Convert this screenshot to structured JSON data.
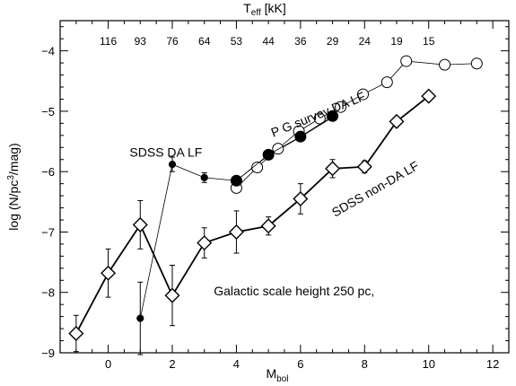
{
  "chart_data": {
    "type": "line",
    "xlabel": "M",
    "xlabel_sub": "bol",
    "ylabel": "log (N/pc",
    "ylabel_sup": "3",
    "ylabel_tail": "/mag)",
    "top_axis_label": "T",
    "top_axis_sub": "eff",
    "top_axis_unit": " [kK]",
    "xlim": [
      -1.5,
      12.5
    ],
    "ylim": [
      -9,
      -3.5
    ],
    "x_ticks": [
      "0",
      "2",
      "4",
      "6",
      "8",
      "10",
      "12"
    ],
    "x_tick_values": [
      0,
      2,
      4,
      6,
      8,
      10,
      12
    ],
    "y_ticks": [
      "−4",
      "−5",
      "−6",
      "−7",
      "−8",
      "−9"
    ],
    "y_tick_values": [
      -4,
      -5,
      -6,
      -7,
      -8,
      -9
    ],
    "top_ticks": [
      {
        "label": "116",
        "x": 0
      },
      {
        "label": "93",
        "x": 1
      },
      {
        "label": "76",
        "x": 2
      },
      {
        "label": "64",
        "x": 3
      },
      {
        "label": "53",
        "x": 4
      },
      {
        "label": "44",
        "x": 5
      },
      {
        "label": "36",
        "x": 6
      },
      {
        "label": "29",
        "x": 7
      },
      {
        "label": "24",
        "x": 8
      },
      {
        "label": "19",
        "x": 9
      },
      {
        "label": "15",
        "x": 10
      }
    ],
    "series": [
      {
        "name": "SDSS DA LF",
        "marker": "small-filled-circle",
        "line_width": 0.8,
        "x": [
          1,
          2,
          3,
          4,
          5,
          6,
          7
        ],
        "y": [
          -8.43,
          -5.88,
          -6.1,
          -6.15,
          -5.73,
          -5.43,
          -5.1
        ],
        "yerr": [
          0.6,
          0.12,
          0.08,
          0.06,
          0.05,
          0.05,
          0.05
        ]
      },
      {
        "name": "P G survey DA LF",
        "marker": "open-circle",
        "line_width": 0.8,
        "x": [
          4,
          4.65,
          5.3,
          5.95,
          6.6,
          7.25,
          7.95,
          8.7,
          9.3,
          10.5,
          11.5
        ],
        "y": [
          -6.27,
          -5.93,
          -5.62,
          -5.33,
          -5.12,
          -4.93,
          -4.72,
          -4.52,
          -4.17,
          -4.23,
          -4.21
        ],
        "yerr": []
      },
      {
        "name": "SDSS DA LF (large)",
        "marker": "large-filled-circle",
        "line_width": 0.8,
        "x": [
          4,
          5,
          6,
          7
        ],
        "y": [
          -6.15,
          -5.72,
          -5.42,
          -5.08
        ],
        "yerr": [
          0.06,
          0.05,
          0.05,
          0.05
        ]
      },
      {
        "name": "SDSS non-DA LF",
        "marker": "open-diamond",
        "line_width": 1.8,
        "x": [
          -1,
          0,
          1,
          2,
          3,
          4,
          5,
          6,
          7,
          8,
          9,
          10
        ],
        "y": [
          -8.68,
          -7.68,
          -6.88,
          -8.05,
          -7.18,
          -7.0,
          -6.9,
          -6.45,
          -5.95,
          -5.92,
          -5.17,
          -4.75
        ],
        "yerr": [
          0.3,
          0.4,
          0.4,
          0.5,
          0.25,
          0.35,
          0.15,
          0.25,
          0.15,
          0.1,
          0.08,
          0.06
        ]
      }
    ],
    "annotations": [
      {
        "text": "SDSS DA LF",
        "x": 1.8,
        "y": -5.75,
        "rotate": 0
      },
      {
        "text": "P G survey DA LF",
        "x": 6.6,
        "y": -5.12,
        "rotate": -22
      },
      {
        "text": "SDSS non-DA LF",
        "x": 8.4,
        "y": -6.35,
        "rotate": -30
      },
      {
        "text": "Galactic scale height  250 pc,",
        "x": 5.8,
        "y": -8.05,
        "rotate": 0
      }
    ],
    "grid": false
  }
}
